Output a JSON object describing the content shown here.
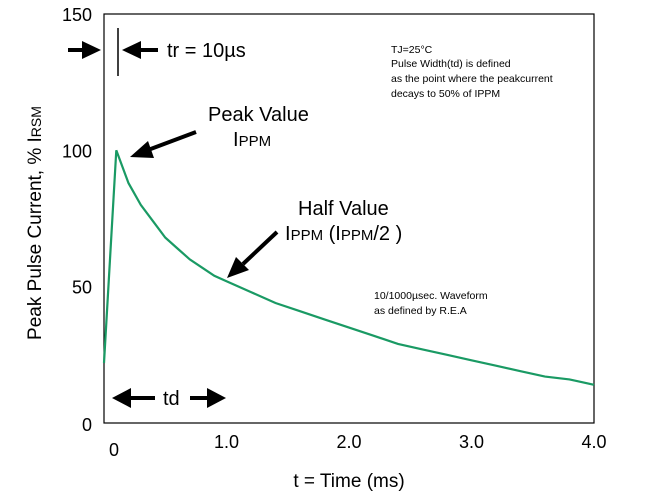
{
  "chart_data": {
    "type": "line",
    "xlabel": "t = Time (ms)",
    "ylabel_main": "Peak Pulse Current, % I",
    "ylabel_sub": "RSM",
    "xlim": [
      0,
      4.0
    ],
    "ylim": [
      0,
      150
    ],
    "x_tick_values": [
      0,
      1.0,
      2.0,
      3.0,
      4.0
    ],
    "x_tick_labels": [
      "0",
      "1.0",
      "2.0",
      "3.0",
      "4.0"
    ],
    "y_tick_values": [
      0,
      50,
      100,
      150
    ],
    "y_tick_labels": [
      "0",
      "50",
      "100",
      "150"
    ],
    "grid": false,
    "series_color": "#1a9a64",
    "series": [
      {
        "x": [
          0.0,
          0.1,
          0.2,
          0.3,
          0.4,
          0.5,
          0.6,
          0.7,
          0.8,
          0.9,
          1.0,
          1.2,
          1.4,
          1.6,
          1.8,
          2.0,
          2.2,
          2.4,
          2.6,
          2.8,
          3.0,
          3.2,
          3.4,
          3.6,
          3.8,
          4.0
        ],
        "y": [
          22,
          100,
          88,
          80,
          74,
          68,
          64,
          60,
          57,
          54,
          52,
          48,
          44,
          41,
          38,
          35,
          32,
          29,
          27,
          25,
          23,
          21,
          19,
          17,
          16,
          14
        ]
      }
    ]
  },
  "annotations": {
    "tr": "tr = 10µs",
    "peak_title": "Peak Value",
    "peak_sub": "PPM",
    "peak_prefix": "I",
    "half_title": "Half Value",
    "half_i1": "I",
    "half_s1": "PPM",
    "half_mid": " (I",
    "half_s2": "PPM",
    "half_end": "/2 )",
    "note_lines": [
      "TJ=25°C",
      "Pulse Width(td) is defined",
      "as the point where the peakcurrent",
      "decays to 50% of IPPM"
    ],
    "waveform_lines": [
      "10/1000µsec. Waveform",
      "as defined by R.E.A"
    ],
    "td": "td"
  }
}
